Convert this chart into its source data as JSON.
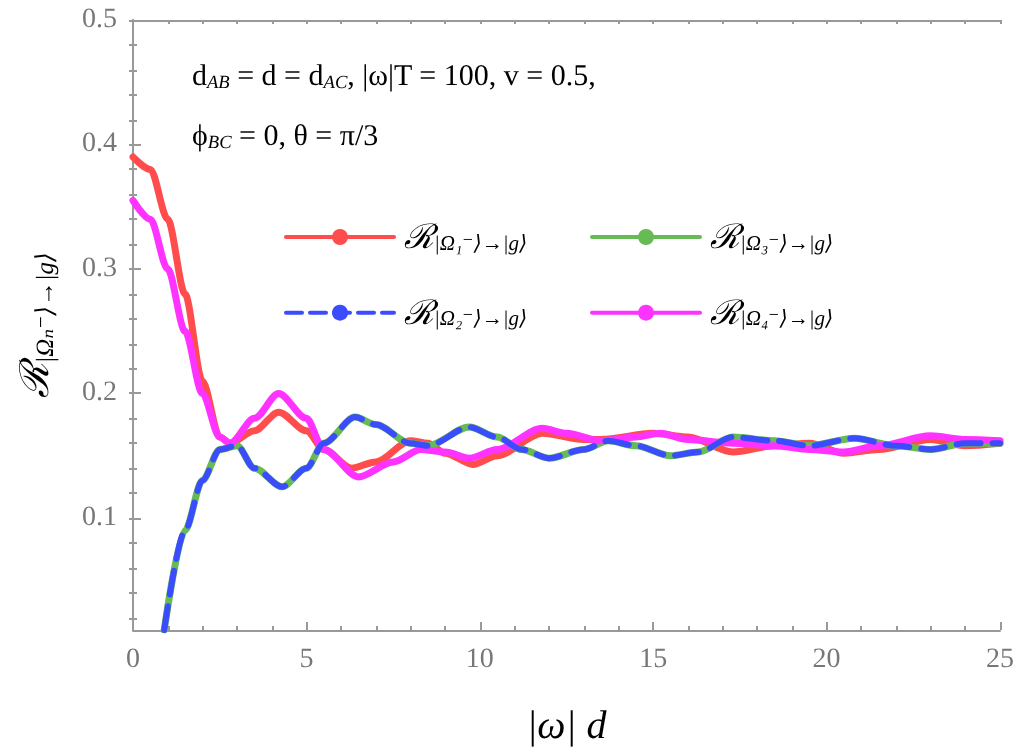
{
  "chart_data": {
    "type": "line",
    "xlabel": "|ω| d",
    "ylabel": "ℛ$_{|Ωₙ⁻⟩→|g⟩}$",
    "annotations": [
      "d$_{AB}$ = d = d$_{AC}$, |ω|T = 100, v = 0.5,",
      "ϕ$_{BC}$ = 0, θ = π/3"
    ],
    "xlim": [
      0,
      25
    ],
    "xticks": [
      0,
      5,
      10,
      15,
      20,
      25
    ],
    "ylim": [
      0.01,
      0.5
    ],
    "yticks": [
      0.1,
      0.2,
      0.3,
      0.4,
      0.5
    ],
    "grid": false,
    "legend": "top",
    "marker": "none",
    "line_style": "solid",
    "series": [
      {
        "name": "ℛ$_{|Ω₁⁻⟩→|g⟩}$",
        "color": "#ff4d4d",
        "x": [
          0,
          0.5,
          1,
          1.5,
          2,
          2.5,
          2.8,
          3.5,
          4.2,
          5,
          5.5,
          6.3,
          7,
          8,
          8.5,
          9,
          9.8,
          10.5,
          11.8,
          13,
          13.5,
          15,
          16,
          17.3,
          18.5,
          19.5,
          20.5,
          21.5,
          23,
          24,
          25
        ],
        "values": [
          0.39,
          0.38,
          0.34,
          0.28,
          0.21,
          0.165,
          0.16,
          0.17,
          0.185,
          0.17,
          0.155,
          0.14,
          0.145,
          0.162,
          0.16,
          0.152,
          0.143,
          0.15,
          0.168,
          0.163,
          0.163,
          0.168,
          0.165,
          0.153,
          0.158,
          0.16,
          0.152,
          0.155,
          0.163,
          0.158,
          0.16
        ]
      },
      {
        "name": "ℛ$_{|Ω₂⁻⟩→|g⟩}$",
        "color": "#3b4bff",
        "line_style": "dashed",
        "x": [
          0.9,
          1.5,
          2,
          2.5,
          3,
          3.5,
          4.3,
          5,
          5.5,
          6.4,
          7,
          8,
          8.5,
          9.7,
          10.5,
          11.2,
          12,
          13,
          13.7,
          14.5,
          15.5,
          16.3,
          17.3,
          18.5,
          19.5,
          20.8,
          22,
          23,
          24,
          25
        ],
        "values": [
          0.01,
          0.09,
          0.13,
          0.155,
          0.158,
          0.14,
          0.125,
          0.14,
          0.16,
          0.181,
          0.175,
          0.16,
          0.158,
          0.173,
          0.165,
          0.155,
          0.148,
          0.155,
          0.162,
          0.158,
          0.15,
          0.153,
          0.165,
          0.162,
          0.158,
          0.164,
          0.158,
          0.155,
          0.16,
          0.16
        ]
      },
      {
        "name": "ℛ$_{|Ω₃⁻⟩→|g⟩}$",
        "color": "#66bb55",
        "x": [
          0.9,
          1.5,
          2,
          2.5,
          3,
          3.5,
          4.3,
          5,
          5.5,
          6.4,
          7,
          8,
          8.5,
          9.7,
          10.5,
          11.2,
          12,
          13,
          13.7,
          14.5,
          15.5,
          16.3,
          17.3,
          18.5,
          19.5,
          20.8,
          22,
          23,
          24,
          25
        ],
        "values": [
          0.01,
          0.09,
          0.13,
          0.155,
          0.158,
          0.14,
          0.125,
          0.14,
          0.16,
          0.181,
          0.175,
          0.16,
          0.158,
          0.173,
          0.165,
          0.155,
          0.148,
          0.155,
          0.162,
          0.158,
          0.15,
          0.153,
          0.165,
          0.162,
          0.158,
          0.164,
          0.158,
          0.155,
          0.16,
          0.16
        ]
      },
      {
        "name": "ℛ$_{|Ω₄⁻⟩→|g⟩}$",
        "color": "#ff33ff",
        "x": [
          0,
          0.5,
          1,
          1.5,
          2,
          2.5,
          2.8,
          3.5,
          4.2,
          5,
          5.5,
          6.5,
          7.5,
          8.3,
          9,
          9.7,
          10.5,
          11.8,
          12.5,
          13.5,
          14.5,
          15.2,
          16,
          17.3,
          18.5,
          19.5,
          20.5,
          21.5,
          23,
          24,
          25
        ],
        "values": [
          0.355,
          0.34,
          0.3,
          0.25,
          0.2,
          0.165,
          0.16,
          0.18,
          0.2,
          0.18,
          0.155,
          0.133,
          0.145,
          0.155,
          0.153,
          0.148,
          0.155,
          0.172,
          0.168,
          0.162,
          0.165,
          0.168,
          0.163,
          0.16,
          0.158,
          0.155,
          0.153,
          0.158,
          0.166,
          0.163,
          0.162
        ]
      }
    ]
  }
}
